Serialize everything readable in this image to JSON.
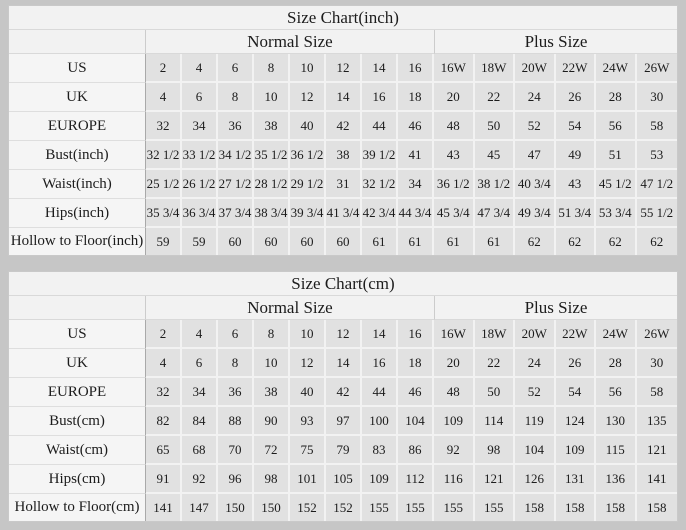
{
  "colors": {
    "page_background": "#c6c6c6",
    "table_background": "#f2f2f2",
    "data_cell_background": "#e1e1e1",
    "text": "#1c1c1c"
  },
  "chart_data": [
    {
      "type": "table",
      "title": "Size Chart(inch)",
      "group_headers": [
        "Normal Size",
        "Plus Size"
      ],
      "rows": [
        {
          "label": "US",
          "normal": [
            "2",
            "4",
            "6",
            "8",
            "10",
            "12",
            "14",
            "16"
          ],
          "plus": [
            "16W",
            "18W",
            "20W",
            "22W",
            "24W",
            "26W"
          ]
        },
        {
          "label": "UK",
          "normal": [
            "4",
            "6",
            "8",
            "10",
            "12",
            "14",
            "16",
            "18"
          ],
          "plus": [
            "20",
            "22",
            "24",
            "26",
            "28",
            "30"
          ]
        },
        {
          "label": "EUROPE",
          "normal": [
            "32",
            "34",
            "36",
            "38",
            "40",
            "42",
            "44",
            "46"
          ],
          "plus": [
            "48",
            "50",
            "52",
            "54",
            "56",
            "58"
          ]
        },
        {
          "label": "Bust(inch)",
          "normal": [
            "32 1/2",
            "33 1/2",
            "34 1/2",
            "35 1/2",
            "36 1/2",
            "38",
            "39 1/2",
            "41"
          ],
          "plus": [
            "43",
            "45",
            "47",
            "49",
            "51",
            "53"
          ]
        },
        {
          "label": "Waist(inch)",
          "normal": [
            "25 1/2",
            "26 1/2",
            "27 1/2",
            "28 1/2",
            "29 1/2",
            "31",
            "32 1/2",
            "34"
          ],
          "plus": [
            "36 1/2",
            "38 1/2",
            "40 3/4",
            "43",
            "45 1/2",
            "47 1/2"
          ]
        },
        {
          "label": "Hips(inch)",
          "normal": [
            "35 3/4",
            "36 3/4",
            "37 3/4",
            "38 3/4",
            "39 3/4",
            "41 3/4",
            "42 3/4",
            "44 3/4"
          ],
          "plus": [
            "45 3/4",
            "47 3/4",
            "49 3/4",
            "51 3/4",
            "53 3/4",
            "55 1/2"
          ]
        },
        {
          "label": "Hollow to Floor(inch)",
          "normal": [
            "59",
            "59",
            "60",
            "60",
            "60",
            "60",
            "61",
            "61"
          ],
          "plus": [
            "61",
            "61",
            "62",
            "62",
            "62",
            "62"
          ]
        }
      ]
    },
    {
      "type": "table",
      "title": "Size Chart(cm)",
      "group_headers": [
        "Normal Size",
        "Plus Size"
      ],
      "rows": [
        {
          "label": "US",
          "normal": [
            "2",
            "4",
            "6",
            "8",
            "10",
            "12",
            "14",
            "16"
          ],
          "plus": [
            "16W",
            "18W",
            "20W",
            "22W",
            "24W",
            "26W"
          ]
        },
        {
          "label": "UK",
          "normal": [
            "4",
            "6",
            "8",
            "10",
            "12",
            "14",
            "16",
            "18"
          ],
          "plus": [
            "20",
            "22",
            "24",
            "26",
            "28",
            "30"
          ]
        },
        {
          "label": "EUROPE",
          "normal": [
            "32",
            "34",
            "36",
            "38",
            "40",
            "42",
            "44",
            "46"
          ],
          "plus": [
            "48",
            "50",
            "52",
            "54",
            "56",
            "58"
          ]
        },
        {
          "label": "Bust(cm)",
          "normal": [
            "82",
            "84",
            "88",
            "90",
            "93",
            "97",
            "100",
            "104"
          ],
          "plus": [
            "109",
            "114",
            "119",
            "124",
            "130",
            "135"
          ]
        },
        {
          "label": "Waist(cm)",
          "normal": [
            "65",
            "68",
            "70",
            "72",
            "75",
            "79",
            "83",
            "86"
          ],
          "plus": [
            "92",
            "98",
            "104",
            "109",
            "115",
            "121"
          ]
        },
        {
          "label": "Hips(cm)",
          "normal": [
            "91",
            "92",
            "96",
            "98",
            "101",
            "105",
            "109",
            "112"
          ],
          "plus": [
            "116",
            "121",
            "126",
            "131",
            "136",
            "141"
          ]
        },
        {
          "label": "Hollow to Floor(cm)",
          "normal": [
            "141",
            "147",
            "150",
            "150",
            "152",
            "152",
            "155",
            "155"
          ],
          "plus": [
            "155",
            "155",
            "158",
            "158",
            "158",
            "158"
          ]
        }
      ]
    }
  ]
}
